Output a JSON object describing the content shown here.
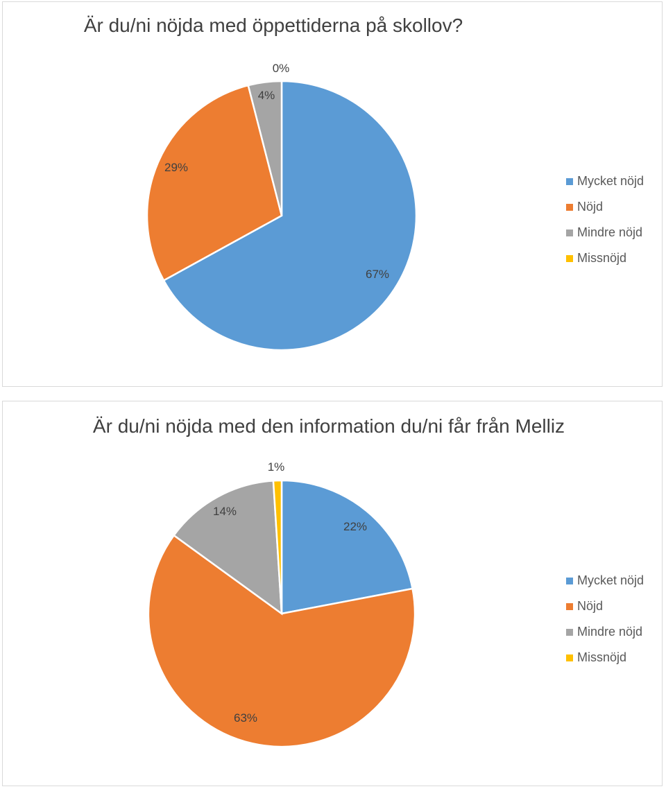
{
  "chart_data": [
    {
      "type": "pie",
      "title": "Är du/ni nöjda med öppettiderna på skollov?",
      "categories": [
        "Mycket nöjd",
        "Nöjd",
        "Mindre nöjd",
        "Missnöjd"
      ],
      "values": [
        67,
        29,
        4,
        0
      ],
      "data_labels": [
        "67%",
        "29%",
        "4%",
        "0%"
      ],
      "colors": [
        "#5b9bd5",
        "#ed7d31",
        "#a5a5a5",
        "#ffc000"
      ],
      "legend_position": "right"
    },
    {
      "type": "pie",
      "title": "Är du/ni nöjda med den information du/ni får från Melliz",
      "categories": [
        "Mycket nöjd",
        "Nöjd",
        "Mindre nöjd",
        "Missnöjd"
      ],
      "values": [
        22,
        63,
        14,
        1
      ],
      "data_labels": [
        "22%",
        "63%",
        "14%",
        "1%"
      ],
      "colors": [
        "#5b9bd5",
        "#ed7d31",
        "#a5a5a5",
        "#ffc000"
      ],
      "legend_position": "right"
    }
  ]
}
